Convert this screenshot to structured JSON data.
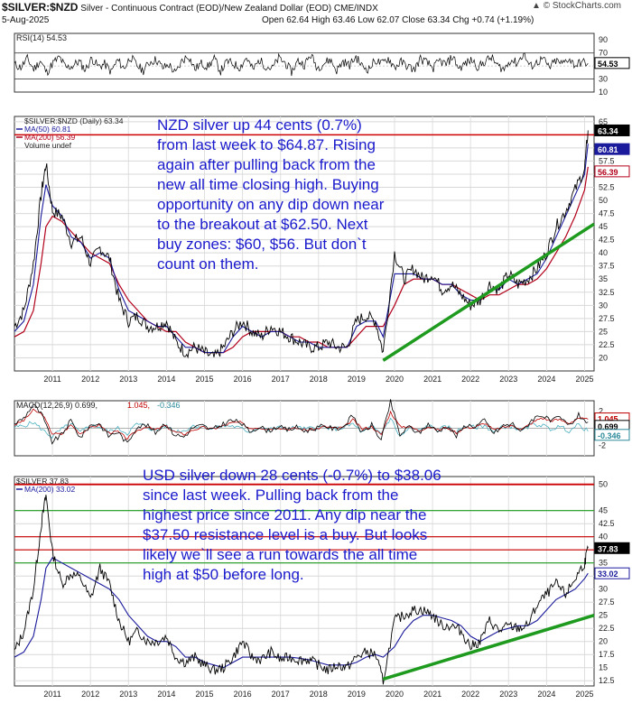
{
  "header": {
    "ticker": "$SILVER:$NZD",
    "title": "Silver - Continuous Contract (EOD)/New Zealand Dollar (EOD) CME/INDX",
    "date": "5-Aug-2025",
    "ohlc": "Open 62.64  High 63.46  Low 62.07  Close 63.34  Chg +0.74 (+1.19%)",
    "brand": "© StockCharts.com",
    "brand_icon": "triangle-up-icon"
  },
  "annotations": {
    "nzd_note": "NZD silver up 44 cents (0.7%)\nfrom last week to $64.87. Rising\nagain after pulling back from the\nnew all time closing high. Buying\nopportunity on any dip down near\nto the breakout at $62.50. Next\nbuy zones: $60, $56. But don`t\ncount on them.",
    "usd_note": "USD silver down 28 cents (-0.7%) to $38.06\nsince last week. Pulling back from the\nhighest price since 2011. Any dip near the\n$37.50 resistance level is a buy. But looks\nlikely we`ll see a run towards the all time\nhigh at $50 before long."
  },
  "colors": {
    "price": "#000000",
    "ma50": "#1a1a9c",
    "ma200": "#b3001b",
    "rsi": "#000000",
    "macd": "#000000",
    "macd_signal": "#c00000",
    "macd_hist": "#4ab0c0",
    "trendline": "#1e9b1e",
    "resistance": "#cc0000",
    "green_level": "#1e9b1e"
  },
  "chart_data": [
    {
      "type": "line",
      "panel": "rsi",
      "legend": "RSI(14) 54.53",
      "ylim": [
        10,
        100
      ],
      "y_ticks": [
        "90",
        "70",
        "50",
        "30",
        "10"
      ],
      "reference_lines": [
        70,
        30
      ],
      "last_value": "54.53",
      "series": [
        {
          "name": "RSI(14)",
          "values": [
            52,
            48,
            61,
            45,
            58,
            40,
            55,
            63,
            47,
            50,
            57,
            44,
            62,
            49,
            53,
            41,
            59,
            46,
            64,
            51,
            43,
            56,
            60,
            47,
            52,
            38,
            58,
            66,
            45,
            54,
            49,
            61,
            42,
            57,
            53,
            48,
            63,
            44,
            59,
            50,
            46,
            62,
            55,
            41,
            58,
            52,
            67,
            47,
            54,
            60,
            43,
            57,
            51,
            64,
            49,
            45,
            59,
            53,
            62,
            48,
            56,
            50,
            44,
            61,
            55,
            47,
            58,
            52,
            65,
            46,
            54,
            59,
            48,
            57,
            63,
            50,
            45,
            60,
            54,
            69,
            49,
            55,
            61,
            47,
            58,
            53,
            62,
            51,
            56,
            54
          ]
        }
      ]
    },
    {
      "type": "line",
      "panel": "nzd_price",
      "legend": [
        "$SILVER:$NZD (Daily) 63.34",
        "MA(50) 60.81",
        "MA(200) 56.39",
        "Volume undef"
      ],
      "x": [
        2010.5,
        2010.75,
        2011.0,
        2011.2,
        2011.33,
        2011.5,
        2011.75,
        2012.0,
        2012.25,
        2012.5,
        2012.75,
        2013.0,
        2013.25,
        2013.5,
        2013.75,
        2014.0,
        2014.25,
        2014.5,
        2014.75,
        2015.0,
        2015.25,
        2015.5,
        2015.75,
        2016.0,
        2016.25,
        2016.5,
        2016.75,
        2017.0,
        2017.25,
        2017.5,
        2017.75,
        2018.0,
        2018.25,
        2018.5,
        2018.75,
        2019.0,
        2019.25,
        2019.5,
        2019.75,
        2020.0,
        2020.2,
        2020.5,
        2020.75,
        2021.0,
        2021.25,
        2021.5,
        2021.75,
        2022.0,
        2022.25,
        2022.5,
        2022.75,
        2023.0,
        2023.25,
        2023.5,
        2023.75,
        2024.0,
        2024.25,
        2024.5,
        2024.75,
        2025.0,
        2025.25,
        2025.5,
        2025.59
      ],
      "x_ticks": [
        "2011",
        "2012",
        "2013",
        "2014",
        "2015",
        "2016",
        "2017",
        "2018",
        "2019",
        "2020",
        "2021",
        "2022",
        "2023",
        "2024",
        "2025"
      ],
      "ylim": [
        17.5,
        66
      ],
      "y_ticks": [
        20,
        22.5,
        25,
        27.5,
        30,
        32.5,
        35,
        37.5,
        40,
        42.5,
        45,
        47.5,
        50,
        52.5,
        55,
        57.5,
        60,
        65
      ],
      "series": [
        {
          "name": "$SILVER:$NZD",
          "values": [
            26,
            29,
            38,
            51,
            57,
            48,
            47,
            42,
            43,
            38,
            41,
            39,
            31,
            27,
            28,
            26,
            26,
            27,
            23,
            21,
            22,
            21,
            20,
            22,
            25,
            27,
            25,
            24,
            26,
            25,
            24,
            23,
            22,
            22,
            23,
            22,
            22,
            27,
            28,
            27,
            21,
            40,
            35,
            37,
            35,
            36,
            33,
            34,
            32,
            30,
            31,
            34,
            33,
            36,
            34,
            35,
            37,
            40,
            45,
            48,
            52,
            56,
            63.34
          ]
        },
        {
          "name": "MA(50)",
          "values": [
            25,
            27,
            34,
            47,
            53,
            49,
            47,
            43,
            42,
            39,
            40,
            39,
            33,
            29,
            28,
            27,
            26,
            26,
            24,
            22,
            22,
            21,
            21,
            21,
            24,
            26,
            25,
            24,
            25,
            25,
            24,
            23,
            23,
            22,
            22,
            22,
            22,
            26,
            27,
            27,
            24,
            36,
            36,
            36,
            35,
            35,
            34,
            34,
            32,
            31,
            31,
            33,
            33,
            35,
            34,
            35,
            36,
            39,
            43,
            47,
            51,
            55,
            60.81
          ]
        },
        {
          "name": "MA(200)",
          "values": [
            24,
            25,
            29,
            38,
            45,
            47,
            46,
            44,
            42,
            40,
            39,
            38,
            34,
            31,
            29,
            27,
            26,
            25,
            25,
            23,
            22,
            21,
            21,
            21,
            22,
            24,
            25,
            25,
            25,
            25,
            24,
            24,
            23,
            23,
            22,
            22,
            22,
            24,
            26,
            26,
            26,
            30,
            34,
            35,
            35,
            35,
            34,
            34,
            33,
            32,
            31,
            32,
            32,
            33,
            34,
            34,
            35,
            37,
            40,
            43,
            47,
            52,
            56.39
          ]
        }
      ],
      "level_lines": [
        {
          "y": 62.5,
          "color": "red",
          "label": "breakout"
        }
      ],
      "trendline": {
        "from": [
          2020.2,
          19.5
        ],
        "to": [
          2025.75,
          45.5
        ]
      },
      "last_labels": [
        "63.34",
        "60.81",
        "56.39"
      ]
    },
    {
      "type": "line",
      "panel": "macd",
      "legend": [
        "MACD(12,26,9) 0.699,",
        "1.045,",
        "-0.346"
      ],
      "ylim": [
        -3.2,
        3.2
      ],
      "y_ticks": [
        "2",
        "1",
        "0",
        "-1",
        "-2"
      ],
      "last_labels": [
        "1.045",
        "0.699",
        "-0.346"
      ],
      "series": [
        {
          "name": "MACD",
          "values": [
            0.5,
            1.2,
            2.8,
            1.4,
            -1.6,
            -0.8,
            0.9,
            -1.1,
            0.3,
            0.6,
            -0.9,
            -0.4,
            -1.8,
            0.2,
            0.4,
            -0.5,
            0.6,
            -0.7,
            -1.0,
            0.1,
            0.3,
            -0.2,
            0.4,
            0.9,
            0.7,
            -0.4,
            0.2,
            -0.3,
            0.2,
            -0.2,
            0.1,
            -0.3,
            0.0,
            0.3,
            -0.1,
            0.2,
            1.5,
            -0.6,
            0.4,
            -1.4,
            3.1,
            -0.8,
            0.2,
            -0.6,
            0.5,
            -0.4,
            0.3,
            -0.9,
            0.4,
            0.2,
            0.9,
            -0.6,
            0.3,
            0.5,
            -0.4,
            1.0,
            1.6,
            0.8,
            1.2,
            0.3,
            1.5,
            0.699
          ]
        },
        {
          "name": "Signal",
          "values": [
            0.4,
            0.9,
            2.1,
            1.6,
            -0.6,
            -0.7,
            0.4,
            -0.6,
            0.0,
            0.4,
            -0.5,
            -0.4,
            -1.2,
            -0.3,
            0.2,
            -0.2,
            0.3,
            -0.4,
            -0.7,
            -0.2,
            0.1,
            -0.1,
            0.2,
            0.6,
            0.7,
            0.0,
            0.1,
            -0.1,
            0.1,
            -0.1,
            0.0,
            -0.2,
            -0.1,
            0.2,
            0.0,
            0.1,
            1.0,
            -0.1,
            0.2,
            -0.8,
            1.9,
            0.2,
            0.2,
            -0.3,
            0.2,
            -0.2,
            0.1,
            -0.5,
            0.1,
            0.1,
            0.6,
            -0.2,
            0.1,
            0.3,
            -0.1,
            0.6,
            1.2,
            0.9,
            1.0,
            0.6,
            1.1,
            1.045
          ]
        }
      ]
    },
    {
      "type": "line",
      "panel": "usd_price",
      "legend": [
        "$SILVER 37.83",
        "MA(200) 33.02"
      ],
      "x": [
        2010.5,
        2010.75,
        2011.0,
        2011.2,
        2011.33,
        2011.5,
        2011.75,
        2012.0,
        2012.25,
        2012.5,
        2012.75,
        2013.0,
        2013.25,
        2013.5,
        2013.75,
        2014.0,
        2014.25,
        2014.5,
        2014.75,
        2015.0,
        2015.25,
        2015.5,
        2015.75,
        2016.0,
        2016.25,
        2016.5,
        2016.75,
        2017.0,
        2017.25,
        2017.5,
        2017.75,
        2018.0,
        2018.25,
        2018.5,
        2018.75,
        2019.0,
        2019.25,
        2019.5,
        2019.75,
        2020.0,
        2020.2,
        2020.5,
        2020.75,
        2021.0,
        2021.25,
        2021.5,
        2021.75,
        2022.0,
        2022.25,
        2022.5,
        2022.75,
        2023.0,
        2023.25,
        2023.5,
        2023.75,
        2024.0,
        2024.25,
        2024.5,
        2024.75,
        2025.0,
        2025.25,
        2025.5,
        2025.59
      ],
      "x_ticks": [
        "2011",
        "2012",
        "2013",
        "2014",
        "2015",
        "2016",
        "2017",
        "2018",
        "2019",
        "2020",
        "2021",
        "2022",
        "2023",
        "2024",
        "2025"
      ],
      "ylim": [
        11.5,
        51.5
      ],
      "y_ticks": [
        12.5,
        15,
        17.5,
        20,
        22.5,
        25,
        27.5,
        30,
        32.5,
        35,
        37.5,
        40,
        42.5,
        45,
        50
      ],
      "series": [
        {
          "name": "$SILVER",
          "values": [
            18,
            22,
            30,
            42,
            48,
            37,
            31,
            33,
            32,
            28,
            34,
            31,
            24,
            20,
            22,
            20,
            20,
            21,
            17,
            16,
            17,
            15.5,
            14.5,
            15,
            17,
            20,
            17,
            16.5,
            18,
            16.5,
            17,
            16.5,
            16.5,
            15.5,
            14.5,
            15.5,
            15,
            17,
            18,
            17.5,
            12.5,
            24,
            25,
            26,
            26,
            25,
            23,
            23,
            22,
            19,
            20,
            24,
            22,
            23,
            22.5,
            23,
            27,
            29,
            31,
            29,
            32,
            35,
            37.83
          ]
        },
        {
          "name": "MA(200)",
          "values": [
            17,
            18,
            21,
            28,
            34,
            36,
            35,
            34,
            33,
            32,
            31,
            30,
            28,
            25,
            23,
            21,
            20,
            20,
            19,
            17,
            17,
            16,
            15.5,
            15,
            16,
            17,
            17,
            17,
            17,
            17,
            17,
            16.8,
            16.5,
            16,
            15.5,
            15.5,
            15.5,
            16,
            17,
            17.5,
            17,
            19,
            22,
            24,
            25,
            25,
            24.5,
            24,
            23,
            21,
            20,
            21,
            22,
            22.5,
            23,
            23,
            24,
            26,
            28,
            29,
            30,
            32,
            33.02
          ]
        }
      ],
      "level_lines": [
        {
          "y": 50,
          "color": "red",
          "label": "all time high"
        },
        {
          "y": 45,
          "color": "green"
        },
        {
          "y": 40,
          "color": "red"
        },
        {
          "y": 37.5,
          "color": "red",
          "label": "resistance"
        },
        {
          "y": 35,
          "color": "green"
        }
      ],
      "trendline": {
        "from": [
          2020.2,
          12.8
        ],
        "to": [
          2025.75,
          25.0
        ]
      },
      "last_labels": [
        "37.83",
        "33.02"
      ]
    }
  ]
}
